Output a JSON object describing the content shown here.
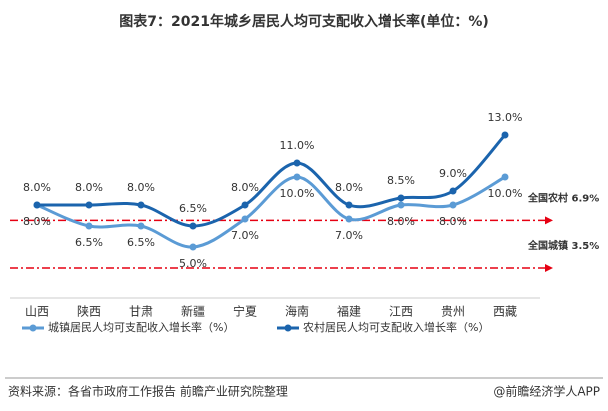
{
  "chart_data": {
    "type": "line",
    "title": "图表7：2021年城乡居民人均可支配收入增长率(单位：%)",
    "categories": [
      "山西",
      "陕西",
      "甘肃",
      "新疆",
      "宁夏",
      "海南",
      "福建",
      "江西",
      "贵州",
      "西藏"
    ],
    "series": [
      {
        "name": "城镇居民人均可支配收入增长率（%）",
        "color": "#5b9bd5",
        "label_side": "below",
        "values": [
          8.0,
          6.5,
          6.5,
          5.0,
          7.0,
          10.0,
          7.0,
          8.0,
          8.0,
          10.0
        ],
        "value_labels": [
          "8.0%",
          "6.5%",
          "6.5%",
          "5.0%",
          "7.0%",
          "10.0%",
          "7.0%",
          "8.0%",
          "8.0%",
          "10.0%"
        ]
      },
      {
        "name": "农村居民人均可支配收入增长率（%）",
        "color": "#1b64ad",
        "label_side": "above",
        "values": [
          8.0,
          8.0,
          8.0,
          6.5,
          8.0,
          11.0,
          8.0,
          8.5,
          9.0,
          13.0
        ],
        "value_labels": [
          "8.0%",
          "8.0%",
          "8.0%",
          "6.5%",
          "8.0%",
          "11.0%",
          "8.0%",
          "8.5%",
          "9.0%",
          "13.0%"
        ]
      }
    ],
    "reference_lines": [
      {
        "label": "全国农村 6.9%",
        "value": 6.9,
        "color": "#e60012"
      },
      {
        "label": "全国城镇 3.5%",
        "value": 3.5,
        "color": "#e60012"
      }
    ],
    "source": "资料来源：各省市政府工作报告 前瞻产业研究院整理",
    "credit": "@前瞻经济学人APP"
  }
}
